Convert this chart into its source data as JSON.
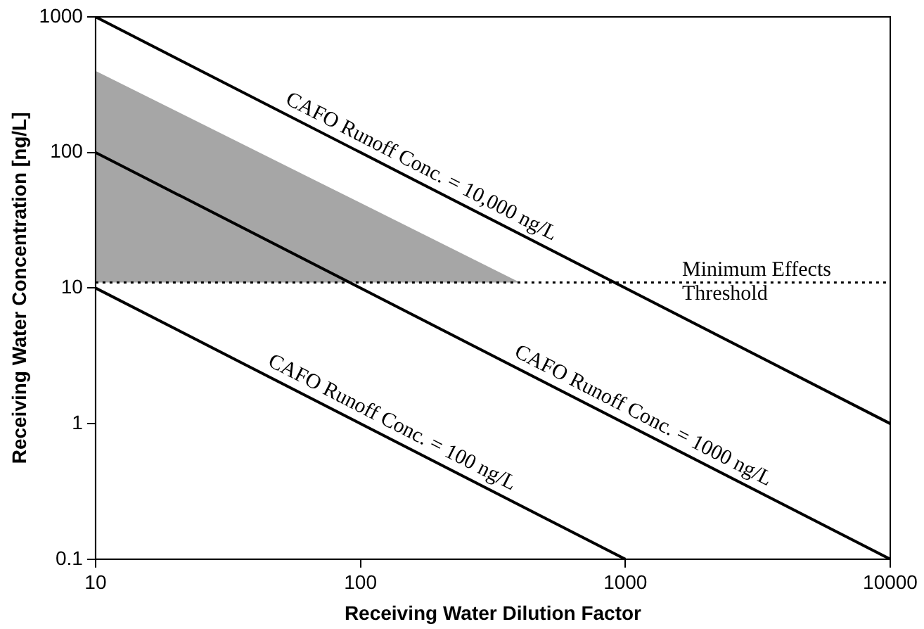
{
  "chart_data": {
    "type": "line",
    "xlabel": "Receiving Water Dilution Factor",
    "ylabel": "Receiving Water Concentration [ng/L]",
    "log": "xy",
    "xlim": [
      10,
      10000
    ],
    "xticks": [
      10,
      100,
      1000,
      10000
    ],
    "ylim": [
      0.1,
      1000
    ],
    "yticks": [
      0.1,
      1,
      10,
      100,
      1000
    ],
    "grid": false,
    "legend": false,
    "marker": "none",
    "series": [
      {
        "type": "area",
        "color": "#a6a6a6",
        "x": [
          10,
          400
        ],
        "values": [
          400,
          11
        ]
      },
      {
        "color": "#000000",
        "x": [
          10,
          10000
        ],
        "values": [
          1000,
          1
        ]
      },
      {
        "color": "#000000",
        "x": [
          10,
          10000
        ],
        "values": [
          100,
          0.1
        ]
      },
      {
        "color": "#000000",
        "x": [
          10,
          1000
        ],
        "values": [
          10,
          0.1
        ]
      }
    ],
    "ref_lines": [
      {
        "axis": "y",
        "value": 11,
        "label": "Minimum Effects Threshold",
        "line_style": "dotted",
        "color": "#000000"
      }
    ],
    "annotations": [
      {
        "text": "CAFO Runoff Conc. = 10,000 ng/L",
        "x": 160,
        "y": 62.5
      },
      {
        "text": "CAFO Runoff Conc. = 1000 ng/L",
        "x": 1100,
        "y": 0.91
      },
      {
        "text": "CAFO Runoff Conc. = 100 ng/L",
        "x": 124,
        "y": 0.81
      }
    ]
  }
}
